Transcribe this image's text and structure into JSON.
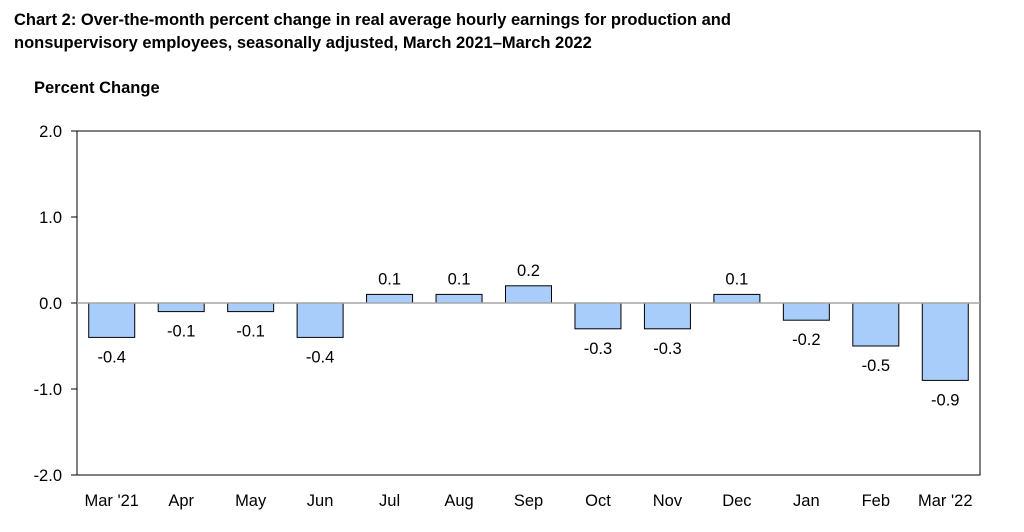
{
  "chart_data": {
    "type": "bar",
    "title": "Chart 2: Over-the-month percent change in real average hourly earnings for production and nonsupervisory employees, seasonally adjusted, March 2021–March 2022",
    "title_lines": [
      "Chart 2: Over-the-month percent change in real average hourly earnings for production and",
      "nonsupervisory employees, seasonally adjusted, March 2021–March 2022"
    ],
    "ylabel": "Percent Change",
    "xlabel": "",
    "categories": [
      "Mar '21",
      "Apr",
      "May",
      "Jun",
      "Jul",
      "Aug",
      "Sep",
      "Oct",
      "Nov",
      "Dec",
      "Jan",
      "Feb",
      "Mar '22"
    ],
    "values": [
      -0.4,
      -0.1,
      -0.1,
      -0.4,
      0.1,
      0.1,
      0.2,
      -0.3,
      -0.3,
      0.1,
      -0.2,
      -0.5,
      -0.9
    ],
    "value_labels": [
      "-0.4",
      "-0.1",
      "-0.1",
      "-0.4",
      "0.1",
      "0.1",
      "0.2",
      "-0.3",
      "-0.3",
      "0.1",
      "-0.2",
      "-0.5",
      "-0.9"
    ],
    "ylim": [
      -2.0,
      2.0
    ],
    "yticks": [
      2.0,
      1.0,
      0.0,
      -1.0,
      -2.0
    ],
    "ytick_labels": [
      "2.0",
      "1.0",
      "0.0",
      "-1.0",
      "-2.0"
    ],
    "grid": false,
    "legend": "none",
    "colors": {
      "bar_fill": "#a9cdfa",
      "bar_stroke": "#000000",
      "zero_line": "#a6a6a6"
    }
  }
}
